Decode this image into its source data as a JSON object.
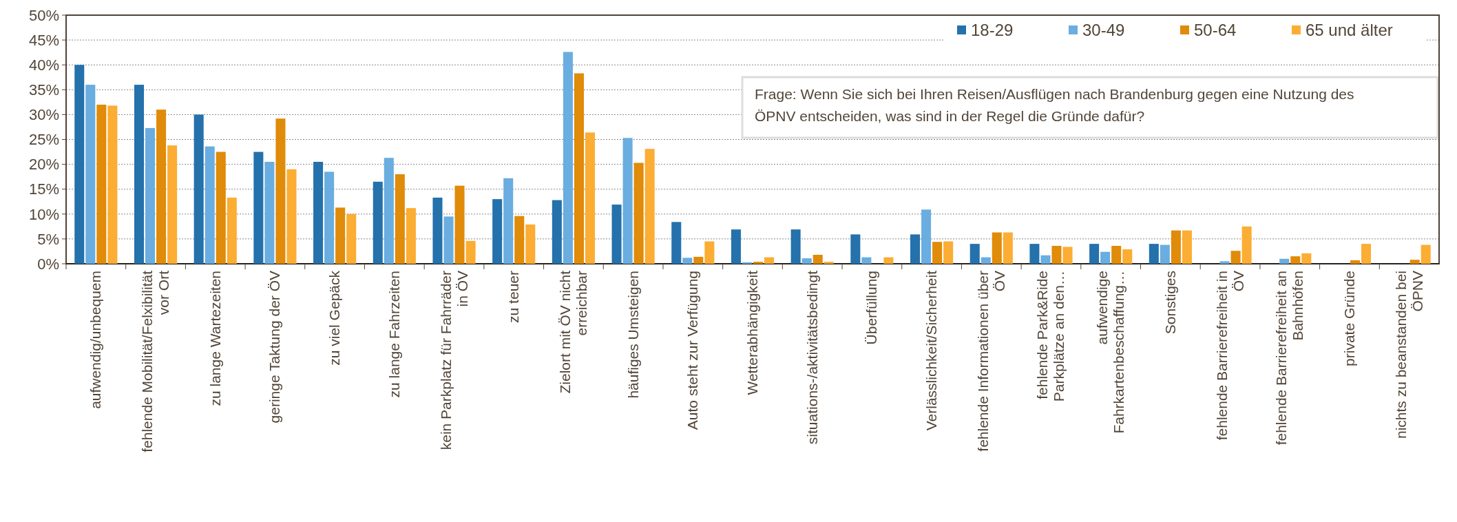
{
  "chart_data": {
    "type": "bar",
    "categories": [
      "aufwendig/unbequem",
      "fehlende Mobilität/Felxibilität\nvor Ort",
      "zu lange Wartezeiten",
      "geringe Taktung der  ÖV",
      "zu viel Gepäck",
      "zu lange Fahrzeiten",
      "kein Parkplatz für  Fahrräder\nin ÖV",
      "zu teuer",
      "Zielort mit ÖV  nicht\nerreichbar",
      "häufiges Umsteigen",
      "Auto steht zur Verfügung",
      "Wetterabhängigkeit",
      "situations-/aktivitätsbedingt",
      "Überfüllung",
      "Verlässlichkeit/Sicherheit",
      "fehlende Informationen über\nÖV",
      "fehlende Park&Ride\nParkplätze  an den…",
      "aufwendige\nFahrkartenbeschaffung…",
      "Sonstiges",
      "fehlende Barrierefreiheit in\nÖV",
      "fehlende Barrierefreiheit an\nBahnhöfen",
      "private Gründe",
      "nichts zu beanstanden bei\nÖPNV"
    ],
    "series": [
      {
        "name": "18-29",
        "color": "#2471ac",
        "values": [
          40,
          36,
          30,
          22.5,
          20.5,
          16.5,
          13.3,
          13,
          12.8,
          11.9,
          8.4,
          6.9,
          6.9,
          5.9,
          5.9,
          4,
          4,
          4,
          4,
          0,
          0,
          0,
          0
        ]
      },
      {
        "name": "30-49",
        "color": "#6aade0",
        "values": [
          36,
          27.3,
          23.6,
          20.5,
          18.5,
          21.3,
          9.5,
          17.2,
          42.6,
          25.3,
          1.2,
          0.3,
          1.1,
          1.3,
          10.9,
          1.3,
          1.7,
          2.4,
          3.8,
          0.5,
          1,
          0,
          0
        ]
      },
      {
        "name": "50-64",
        "color": "#e08b09",
        "values": [
          32,
          31,
          22.5,
          29.2,
          11.3,
          18,
          15.7,
          9.6,
          38.3,
          20.3,
          1.4,
          0.4,
          1.8,
          0,
          4.4,
          6.3,
          3.6,
          3.6,
          6.7,
          2.6,
          1.5,
          0.7,
          0.8
        ]
      },
      {
        "name": "65 und älter",
        "color": "#fbad34",
        "values": [
          31.8,
          23.8,
          13.3,
          19,
          10,
          11.2,
          4.6,
          7.9,
          26.4,
          23.1,
          4.5,
          1.3,
          0.4,
          1.3,
          4.5,
          6.3,
          3.4,
          2.9,
          6.7,
          7.5,
          2.1,
          4,
          3.8
        ]
      }
    ],
    "ylim": [
      0,
      50
    ],
    "yticks": [
      {
        "value": 0,
        "label": "0%"
      },
      {
        "value": 5,
        "label": "5%"
      },
      {
        "value": 10,
        "label": "10%"
      },
      {
        "value": 15,
        "label": "15%"
      },
      {
        "value": 20,
        "label": "20%"
      },
      {
        "value": 25,
        "label": "25%"
      },
      {
        "value": 30,
        "label": "30%"
      },
      {
        "value": 35,
        "label": "35%"
      },
      {
        "value": 40,
        "label": "40%"
      },
      {
        "value": 45,
        "label": "45%"
      },
      {
        "value": 50,
        "label": "50%"
      }
    ],
    "grid": "y",
    "legend": "top right",
    "annotations": [
      "Frage: Wenn Sie sich bei Ihren Reisen/Ausflügen nach Brandenburg gegen eine Nutzung des\nÖPNV entscheiden, was sind in der Regel die Gründe dafür?"
    ]
  }
}
